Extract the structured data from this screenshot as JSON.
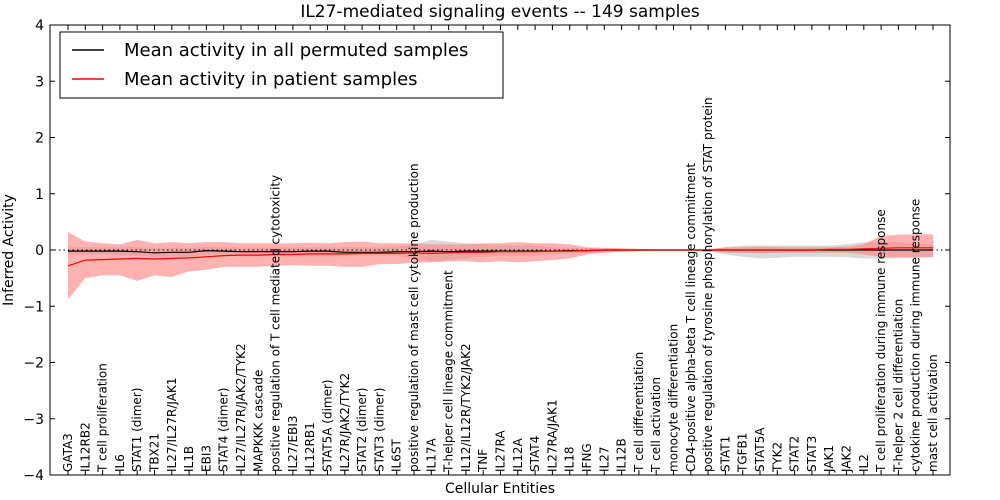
{
  "chart_data": {
    "type": "line",
    "title": "IL27-mediated signaling events -- 149 samples",
    "xlabel": "Cellular Entities",
    "ylabel": "Inferred Activity",
    "ylim": [
      -4,
      4
    ],
    "yticks": [
      -4,
      -3,
      -2,
      -1,
      0,
      1,
      2,
      3,
      4
    ],
    "grid": false,
    "legend_position": "top-left",
    "colors": {
      "patient_line": "#ff0000",
      "patient_band": "#ff7f7f",
      "permuted_line": "#000000",
      "permuted_band": "#bbbbbb",
      "zero_line": "#000000"
    },
    "categories": [
      "GATA3",
      "IL12RB2",
      "T cell proliferation",
      "IL6",
      "STAT1 (dimer)",
      "TBX21",
      "IL27/IL27R/JAK1",
      "IL1B",
      "EBI3",
      "STAT4 (dimer)",
      "IL27/IL27R/JAK2/TYK2",
      "MAPKKK cascade",
      "positive regulation of T cell mediated cytotoxicity",
      "IL27/EBI3",
      "IL12RB1",
      "STAT5A (dimer)",
      "IL27R/JAK2/TYK2",
      "STAT2 (dimer)",
      "STAT3 (dimer)",
      "IL6ST",
      "positive regulation of mast cell cytokine production",
      "IL17A",
      "T-helper cell lineage commitment",
      "IL12/IL12R/TYK2/JAK2",
      "TNF",
      "IL27RA",
      "IL12A",
      "STAT4",
      "IL27RA/JAK1",
      "IL18",
      "IFNG",
      "IL27",
      "IL12B",
      "T cell differentiation",
      "T cell activation",
      "monocyte differentiation",
      "CD4-positive alpha-beta T cell lineage commitment",
      "positive regulation of tyrosine phosphorylation of STAT protein",
      "STAT1",
      "TGFB1",
      "STAT5A",
      "TYK2",
      "STAT2",
      "STAT3",
      "JAK1",
      "JAK2",
      "IL2",
      "T cell proliferation during immune response",
      "T-helper 2 cell differentiation",
      "cytokine production during immune response",
      "mast cell activation"
    ],
    "series": [
      {
        "name": "Mean activity in all permuted samples",
        "values": [
          -0.02,
          -0.02,
          -0.02,
          -0.02,
          -0.03,
          -0.05,
          -0.04,
          -0.04,
          -0.01,
          -0.02,
          -0.03,
          -0.03,
          -0.03,
          -0.03,
          -0.02,
          -0.02,
          -0.04,
          -0.04,
          -0.04,
          -0.03,
          -0.03,
          -0.02,
          -0.03,
          -0.02,
          -0.02,
          -0.02,
          -0.02,
          -0.02,
          -0.02,
          -0.01,
          -0.01,
          0.0,
          0.0,
          0.0,
          0.0,
          0.0,
          0.0,
          0.0,
          0.0,
          0.0,
          0.0,
          0.0,
          0.0,
          0.0,
          0.0,
          0.0,
          0.0,
          0.0,
          0.0,
          0.0,
          0.0
        ],
        "upper": [
          0.05,
          0.05,
          0.05,
          0.06,
          0.05,
          0.04,
          0.04,
          0.04,
          0.06,
          0.05,
          0.05,
          0.05,
          0.05,
          0.05,
          0.05,
          0.05,
          0.05,
          0.05,
          0.05,
          0.06,
          0.1,
          0.18,
          0.15,
          0.12,
          0.1,
          0.08,
          0.08,
          0.08,
          0.05,
          0.04,
          0.03,
          0.03,
          0.02,
          0.02,
          0.01,
          0.01,
          0.01,
          0.01,
          0.05,
          0.08,
          0.08,
          0.08,
          0.08,
          0.08,
          0.08,
          0.1,
          0.14,
          0.15,
          0.14,
          0.12,
          0.1
        ],
        "lower": [
          -0.08,
          -0.08,
          -0.08,
          -0.1,
          -0.1,
          -0.12,
          -0.12,
          -0.12,
          -0.08,
          -0.08,
          -0.1,
          -0.1,
          -0.1,
          -0.1,
          -0.1,
          -0.1,
          -0.1,
          -0.1,
          -0.1,
          -0.1,
          -0.15,
          -0.2,
          -0.18,
          -0.15,
          -0.12,
          -0.1,
          -0.1,
          -0.1,
          -0.08,
          -0.06,
          -0.05,
          -0.04,
          -0.03,
          -0.02,
          -0.02,
          -0.02,
          -0.02,
          -0.02,
          -0.08,
          -0.12,
          -0.15,
          -0.14,
          -0.12,
          -0.12,
          -0.12,
          -0.13,
          -0.15,
          -0.16,
          -0.15,
          -0.14,
          -0.12
        ]
      },
      {
        "name": "Mean activity in patient samples",
        "values": [
          -0.28,
          -0.18,
          -0.17,
          -0.16,
          -0.15,
          -0.16,
          -0.15,
          -0.14,
          -0.12,
          -0.1,
          -0.09,
          -0.09,
          -0.08,
          -0.08,
          -0.07,
          -0.07,
          -0.07,
          -0.06,
          -0.06,
          -0.06,
          -0.05,
          -0.06,
          -0.05,
          -0.04,
          -0.04,
          -0.03,
          -0.03,
          -0.03,
          -0.02,
          -0.02,
          -0.01,
          0.0,
          0.0,
          0.0,
          0.0,
          0.0,
          0.0,
          0.0,
          0.0,
          0.0,
          0.0,
          0.0,
          0.0,
          0.0,
          0.01,
          0.01,
          0.02,
          0.03,
          0.04,
          0.04,
          0.04
        ],
        "upper": [
          0.32,
          0.15,
          0.12,
          0.1,
          0.18,
          0.12,
          0.14,
          0.12,
          0.14,
          0.14,
          0.12,
          0.12,
          0.12,
          0.12,
          0.13,
          0.12,
          0.14,
          0.15,
          0.12,
          0.12,
          0.12,
          0.1,
          0.1,
          0.1,
          0.12,
          0.12,
          0.14,
          0.12,
          0.12,
          0.1,
          0.05,
          0.04,
          0.03,
          0.02,
          0.01,
          0.01,
          0.01,
          0.01,
          0.05,
          0.05,
          0.06,
          0.05,
          0.05,
          0.05,
          0.05,
          0.06,
          0.1,
          0.25,
          0.27,
          0.28,
          0.28
        ],
        "lower": [
          -0.88,
          -0.5,
          -0.45,
          -0.45,
          -0.55,
          -0.45,
          -0.48,
          -0.38,
          -0.35,
          -0.3,
          -0.3,
          -0.3,
          -0.28,
          -0.27,
          -0.28,
          -0.28,
          -0.3,
          -0.3,
          -0.25,
          -0.25,
          -0.22,
          -0.22,
          -0.2,
          -0.2,
          -0.22,
          -0.2,
          -0.22,
          -0.2,
          -0.18,
          -0.15,
          -0.08,
          -0.05,
          -0.03,
          -0.02,
          -0.01,
          -0.01,
          -0.01,
          -0.01,
          -0.05,
          -0.05,
          -0.06,
          -0.05,
          -0.05,
          -0.05,
          -0.05,
          -0.05,
          -0.08,
          -0.12,
          -0.13,
          -0.13,
          -0.13
        ]
      }
    ]
  }
}
